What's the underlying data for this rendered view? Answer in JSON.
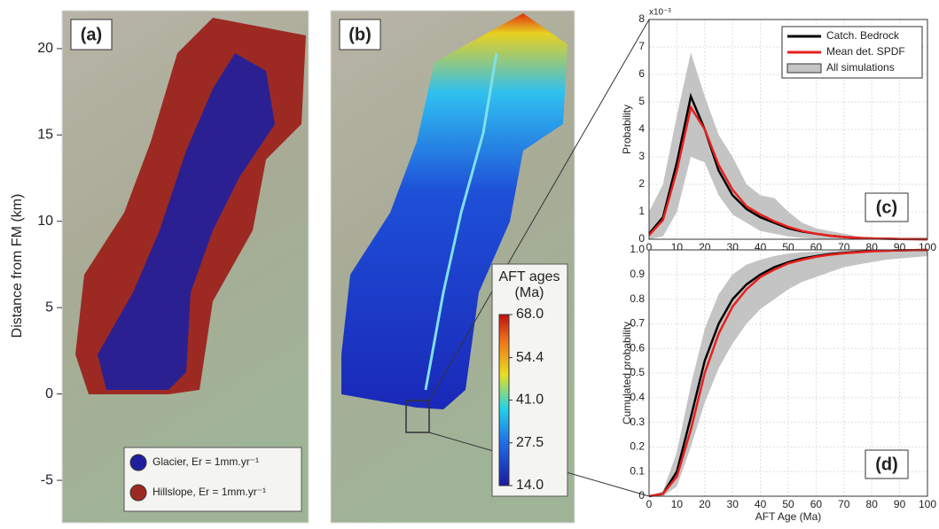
{
  "map_axis": {
    "ylabel": "Distance from FM (km)",
    "ylim": [
      -7.46,
      22.2
    ],
    "yticks": [
      -5,
      0,
      5,
      10,
      15,
      20
    ]
  },
  "panel_a": {
    "label": "(a)",
    "legend": [
      {
        "name": "Glacier, Er = 1mm.yr⁻¹",
        "color": "#1f1f9e"
      },
      {
        "name": "Hillslope, Er = 1mm.yr⁻¹",
        "color": "#9c2a22"
      }
    ]
  },
  "panel_b": {
    "label": "(b)",
    "colorbar": {
      "title": [
        "AFT ages",
        "(Ma)"
      ],
      "lim": [
        14,
        68
      ],
      "ticks": [
        {
          "value": 68,
          "label": "68.0"
        },
        54.4,
        {
          "value": 41,
          "label": "41.0"
        },
        27.5,
        {
          "value": 14,
          "label": "14.0"
        }
      ]
    }
  },
  "chart_data": [
    {
      "type": "line",
      "panel_label": "(c)",
      "xlabel": "AFT Age (Ma)",
      "ylabel": "Probability",
      "y_multiplier": "x10⁻³",
      "x": [
        0,
        5,
        10,
        15,
        20,
        25,
        30,
        35,
        40,
        45,
        50,
        55,
        60,
        65,
        70,
        75,
        80,
        85,
        90,
        95,
        100
      ],
      "xlim": [
        0,
        100
      ],
      "xticks": [
        0,
        10,
        20,
        30,
        40,
        50,
        60,
        70,
        80,
        90,
        100
      ],
      "ylim": [
        0,
        8
      ],
      "yticks": [
        0,
        1,
        2,
        3,
        4,
        5,
        6,
        7,
        8
      ],
      "grid": true,
      "legend": "upper right",
      "series": [
        {
          "name": "Catch. Bedrock",
          "color": "#000000",
          "values": [
            0.2,
            0.8,
            2.8,
            5.2,
            4.0,
            2.5,
            1.6,
            1.1,
            0.8,
            0.6,
            0.4,
            0.28,
            0.2,
            0.13,
            0.08,
            0.05,
            0.03,
            0.02,
            0.01,
            0.005,
            0
          ]
        },
        {
          "name": "Mean det. SPDF",
          "color": "#e8201c",
          "values": [
            0.15,
            0.7,
            2.5,
            4.8,
            4.0,
            2.7,
            1.8,
            1.2,
            0.9,
            0.65,
            0.45,
            0.3,
            0.2,
            0.13,
            0.08,
            0.05,
            0.03,
            0.02,
            0.01,
            0.005,
            0
          ]
        },
        {
          "name": "All simulations",
          "color": "#c4c4c4",
          "upper": [
            1.0,
            2.0,
            4.5,
            6.8,
            5.2,
            3.8,
            3.0,
            2.0,
            1.6,
            1.5,
            1.0,
            0.6,
            0.4,
            0.3,
            0.2,
            0.1,
            0.06,
            0.04,
            0.03,
            0.02,
            0.01
          ],
          "lower": [
            0,
            0.1,
            1.0,
            3.0,
            2.8,
            1.6,
            0.9,
            0.6,
            0.3,
            0.2,
            0.1,
            0.05,
            0.02,
            0,
            0,
            0,
            0,
            0,
            0,
            0,
            0
          ]
        }
      ]
    },
    {
      "type": "line",
      "panel_label": "(d)",
      "xlabel": "AFT Age (Ma)",
      "ylabel": "Cumulated probability",
      "x": [
        0,
        5,
        10,
        15,
        20,
        25,
        30,
        35,
        40,
        45,
        50,
        55,
        60,
        65,
        70,
        75,
        80,
        85,
        90,
        95,
        100
      ],
      "xlim": [
        0,
        100
      ],
      "xticks": [
        0,
        10,
        20,
        30,
        40,
        50,
        60,
        70,
        80,
        90,
        100
      ],
      "ylim": [
        0,
        1
      ],
      "yticks": [
        0,
        0.1,
        0.2,
        0.3,
        0.4,
        0.5,
        0.6,
        0.7,
        0.8,
        0.9,
        {
          "value": 1,
          "label": "1.0"
        }
      ],
      "grid": true,
      "series": [
        {
          "name": "Catch. Bedrock",
          "color": "#000000",
          "values": [
            0,
            0.01,
            0.1,
            0.32,
            0.55,
            0.7,
            0.8,
            0.86,
            0.9,
            0.93,
            0.95,
            0.965,
            0.975,
            0.983,
            0.988,
            0.992,
            0.995,
            0.997,
            0.998,
            0.999,
            1.0
          ]
        },
        {
          "name": "Mean det. SPDF",
          "color": "#e8201c",
          "values": [
            0,
            0.01,
            0.08,
            0.27,
            0.5,
            0.66,
            0.77,
            0.84,
            0.89,
            0.92,
            0.945,
            0.96,
            0.972,
            0.98,
            0.986,
            0.99,
            0.994,
            0.996,
            0.998,
            0.999,
            1.0
          ]
        },
        {
          "name": "All simulations",
          "color": "#c4c4c4",
          "upper": [
            0,
            0.02,
            0.18,
            0.45,
            0.68,
            0.82,
            0.9,
            0.94,
            0.96,
            0.975,
            0.985,
            0.99,
            0.993,
            0.995,
            0.997,
            0.998,
            0.999,
            0.999,
            1.0,
            1.0,
            1.0
          ],
          "lower": [
            0,
            0,
            0.04,
            0.2,
            0.38,
            0.52,
            0.62,
            0.7,
            0.76,
            0.8,
            0.84,
            0.87,
            0.89,
            0.91,
            0.93,
            0.94,
            0.95,
            0.96,
            0.965,
            0.97,
            0.975
          ]
        }
      ]
    }
  ]
}
